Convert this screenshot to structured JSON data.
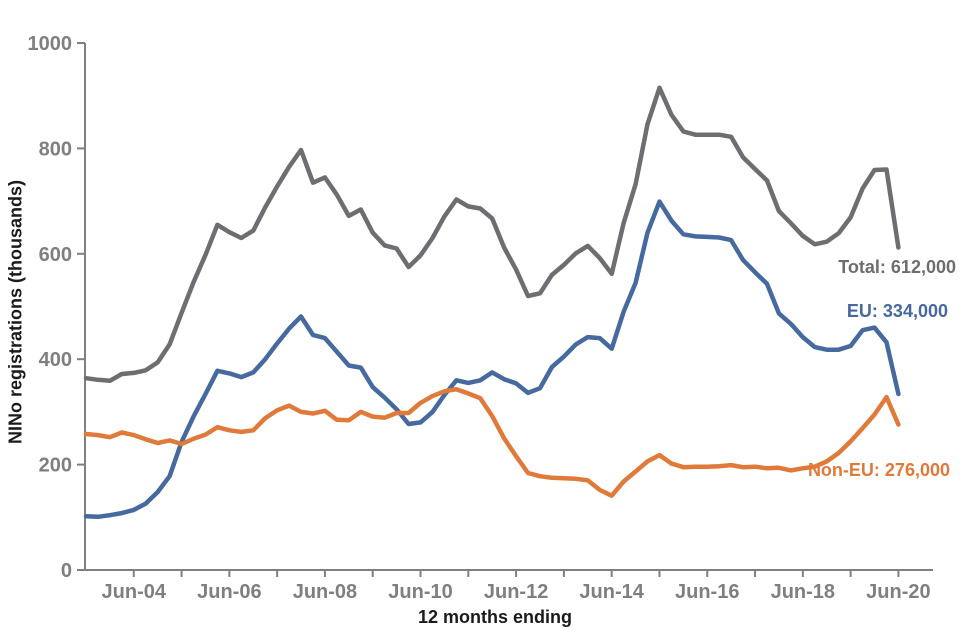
{
  "chart_data": {
    "type": "line",
    "title": "",
    "xlabel": "12 months ending",
    "ylabel": "NINo registrations (thousands)",
    "ylim": [
      0,
      1000
    ],
    "y_ticks": [
      0,
      200,
      400,
      600,
      800,
      1000
    ],
    "grid": false,
    "legend_position": "inline end-of-line annotations",
    "x_major_tick_labels": [
      "Jun-04",
      "Jun-06",
      "Jun-08",
      "Jun-10",
      "Jun-12",
      "Jun-14",
      "Jun-16",
      "Jun-18",
      "Jun-20"
    ],
    "categories": [
      "Jun-03",
      "Sep-03",
      "Dec-03",
      "Mar-04",
      "Jun-04",
      "Sep-04",
      "Dec-04",
      "Mar-05",
      "Jun-05",
      "Sep-05",
      "Dec-05",
      "Mar-06",
      "Jun-06",
      "Sep-06",
      "Dec-06",
      "Mar-07",
      "Jun-07",
      "Sep-07",
      "Dec-07",
      "Mar-08",
      "Jun-08",
      "Sep-08",
      "Dec-08",
      "Mar-09",
      "Jun-09",
      "Sep-09",
      "Dec-09",
      "Mar-10",
      "Jun-10",
      "Sep-10",
      "Dec-10",
      "Mar-11",
      "Jun-11",
      "Sep-11",
      "Dec-11",
      "Mar-12",
      "Jun-12",
      "Sep-12",
      "Dec-12",
      "Mar-13",
      "Jun-13",
      "Sep-13",
      "Dec-13",
      "Mar-14",
      "Jun-14",
      "Sep-14",
      "Dec-14",
      "Mar-15",
      "Jun-15",
      "Sep-15",
      "Dec-15",
      "Mar-16",
      "Jun-16",
      "Sep-16",
      "Dec-16",
      "Mar-17",
      "Jun-17",
      "Sep-17",
      "Dec-17",
      "Mar-18",
      "Jun-18",
      "Sep-18",
      "Dec-18",
      "Mar-19",
      "Jun-19",
      "Sep-19",
      "Dec-19",
      "Mar-20",
      "Jun-20"
    ],
    "series": [
      {
        "name": "Total",
        "color": "#6d6e71",
        "end_label": "Total: 612,000",
        "values": [
          364,
          361,
          359,
          372,
          374,
          379,
          394,
          428,
          488,
          546,
          598,
          655,
          641,
          630,
          644,
          688,
          728,
          765,
          797,
          735,
          745,
          712,
          672,
          684,
          640,
          616,
          610,
          575,
          597,
          630,
          671,
          703,
          690,
          686,
          667,
          612,
          570,
          520,
          525,
          560,
          579,
          601,
          615,
          592,
          562,
          658,
          732,
          846,
          915,
          864,
          832,
          826,
          826,
          826,
          822,
          783,
          761,
          739,
          681,
          658,
          634,
          618,
          623,
          639,
          669,
          724,
          759,
          760,
          612
        ]
      },
      {
        "name": "EU",
        "color": "#46699f",
        "end_label": "EU: 334,000",
        "values": [
          102,
          101,
          104,
          108,
          114,
          126,
          148,
          178,
          243,
          291,
          334,
          378,
          373,
          366,
          375,
          400,
          430,
          458,
          481,
          446,
          440,
          414,
          388,
          384,
          347,
          327,
          305,
          277,
          280,
          300,
          332,
          360,
          355,
          360,
          375,
          362,
          354,
          336,
          345,
          385,
          405,
          428,
          442,
          440,
          420,
          490,
          545,
          640,
          699,
          663,
          637,
          633,
          632,
          631,
          626,
          588,
          565,
          543,
          487,
          467,
          442,
          423,
          418,
          418,
          425,
          455,
          460,
          432,
          334
        ]
      },
      {
        "name": "Non-EU",
        "color": "#e07a3a",
        "end_label": "Non-EU: 276,000",
        "values": [
          258,
          256,
          252,
          261,
          256,
          248,
          241,
          246,
          239,
          249,
          257,
          271,
          265,
          262,
          265,
          288,
          303,
          312,
          300,
          297,
          302,
          285,
          284,
          300,
          291,
          289,
          298,
          298,
          317,
          330,
          339,
          343,
          335,
          326,
          292,
          250,
          216,
          184,
          178,
          175,
          174,
          173,
          170,
          152,
          141,
          168,
          187,
          206,
          218,
          202,
          195,
          196,
          196,
          197,
          199,
          195,
          196,
          193,
          194,
          189,
          193,
          196,
          206,
          222,
          244,
          269,
          295,
          328,
          276
        ]
      }
    ]
  },
  "axis": {
    "x_title": "12 months ending",
    "y_title": "NINo registrations (thousands)",
    "tick_label_color": "#7f7f7f",
    "axis_line_color": "#808080"
  }
}
